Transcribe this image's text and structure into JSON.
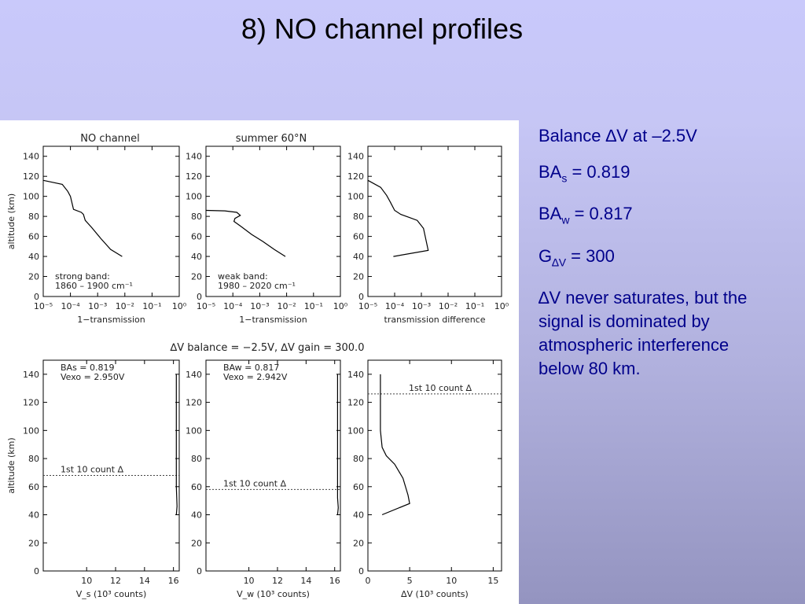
{
  "slide": {
    "title": "8) NO channel profiles",
    "notes": {
      "balance_prefix": "Balance ",
      "balance_delta": "∆",
      "balance_suffix": "V at –2.5V",
      "bas_prefix": "BA",
      "bas_sub": "s",
      "bas_suffix": " = 0.819",
      "baw_prefix": "BA",
      "baw_sub": "w",
      "baw_suffix": " = 0.817",
      "g_prefix": "G",
      "g_sub": "∆V",
      "g_suffix": " = 300",
      "sat_delta": "∆",
      "sat_lines": [
        "V never saturates, but the",
        "signal is dominated by",
        "atmospheric interference",
        "below 80 km."
      ]
    }
  },
  "colors": {
    "bg_top": "#c9c9fb",
    "bg_bottom": "#9494c0",
    "notes_text": "#00008b",
    "plot_line": "#000000"
  },
  "chart_data": [
    {
      "type": "line",
      "title": "NO channel",
      "xlabel": "1−transmission",
      "ylabel": "altitude (km)",
      "xscale": "log",
      "xlim": [
        1e-05,
        1
      ],
      "ylim": [
        0,
        150
      ],
      "xticks": [
        "10⁻⁵",
        "10⁻⁴",
        "10⁻³",
        "10⁻²",
        "10⁻¹",
        "10⁰"
      ],
      "yticks": [
        "0",
        "20",
        "40",
        "60",
        "80",
        "100",
        "120",
        "140"
      ],
      "annotation": [
        "strong band:",
        "1860 – 1900 cm⁻¹"
      ],
      "series": [
        {
          "x": [
            1e-05,
            5e-05,
            8e-05,
            0.0001,
            0.00013,
            0.00025,
            0.0003,
            0.00035,
            0.0006,
            0.0013,
            0.003,
            0.008
          ],
          "y": [
            116,
            112,
            105,
            100,
            87,
            84,
            82,
            76,
            69,
            58,
            47,
            40
          ]
        }
      ]
    },
    {
      "type": "line",
      "title": "summer 60°N",
      "xlabel": "1−transmission",
      "ylabel": "",
      "xscale": "log",
      "xlim": [
        1e-05,
        1
      ],
      "ylim": [
        0,
        150
      ],
      "xticks": [
        "10⁻⁵",
        "10⁻⁴",
        "10⁻³",
        "10⁻²",
        "10⁻¹",
        "10⁰"
      ],
      "yticks": [
        "0",
        "20",
        "40",
        "60",
        "80",
        "100",
        "120",
        "140"
      ],
      "annotation": [
        "weak band:",
        "1980 – 2020 cm⁻¹"
      ],
      "series": [
        {
          "x": [
            1e-05,
            5e-05,
            0.00014,
            0.00019,
            0.00012,
            0.00011,
            0.0002,
            0.0005,
            0.0013,
            0.0035,
            0.009
          ],
          "y": [
            86,
            85.5,
            84,
            81,
            78,
            75,
            70,
            62,
            55,
            47,
            40
          ]
        }
      ]
    },
    {
      "type": "line",
      "title": "",
      "xlabel": "transmission difference",
      "ylabel": "",
      "xscale": "log",
      "xlim": [
        1e-05,
        1
      ],
      "ylim": [
        0,
        150
      ],
      "xticks": [
        "10⁻⁵",
        "10⁻⁴",
        "10⁻³",
        "10⁻²",
        "10⁻¹",
        "10⁰"
      ],
      "yticks": [
        "0",
        "20",
        "40",
        "60",
        "80",
        "100",
        "120",
        "140"
      ],
      "series": [
        {
          "x": [
            1e-05,
            3e-05,
            5e-05,
            7e-05,
            0.0001,
            0.00017,
            0.00035,
            0.0007,
            0.0012,
            0.0018,
            9e-05
          ],
          "y": [
            116,
            109,
            101,
            94,
            86,
            82,
            79,
            76,
            68,
            46,
            40
          ]
        }
      ]
    },
    {
      "type": "line",
      "title": "",
      "xlabel": "V_s (10³ counts)",
      "ylabel": "altitude (km)",
      "xlim": [
        7,
        16.4
      ],
      "ylim": [
        0,
        150
      ],
      "xticks": [
        10,
        12,
        14,
        16
      ],
      "yticks": [
        0,
        20,
        40,
        60,
        80,
        100,
        120,
        140
      ],
      "labels": [
        "BAs = 0.819",
        "Vexo = 2.950V"
      ],
      "reference": {
        "label": "1st 10 count ∆",
        "y": 68
      },
      "series": [
        {
          "x": [
            16.2,
            16.2,
            16.25,
            16.2
          ],
          "y": [
            140,
            60,
            46,
            40
          ]
        }
      ]
    },
    {
      "type": "line",
      "title": "",
      "xlabel": "V_w (10³ counts)",
      "ylabel": "",
      "xlim": [
        7,
        16.4
      ],
      "ylim": [
        0,
        150
      ],
      "xticks": [
        10,
        12,
        14,
        16
      ],
      "yticks": [
        0,
        20,
        40,
        60,
        80,
        100,
        120,
        140
      ],
      "labels": [
        "BAw = 0.817",
        "Vexo = 2.942V"
      ],
      "reference": {
        "label": "1st 10 count ∆",
        "y": 58
      },
      "series": [
        {
          "x": [
            16.2,
            16.2,
            16.25,
            16.2
          ],
          "y": [
            140,
            52,
            45,
            40
          ]
        }
      ]
    },
    {
      "type": "line",
      "title": "",
      "xlabel": "∆V (10³ counts)",
      "ylabel": "",
      "xlim": [
        0,
        16
      ],
      "ylim": [
        0,
        150
      ],
      "xticks": [
        0,
        5,
        10,
        15
      ],
      "yticks": [
        0,
        20,
        40,
        60,
        80,
        100,
        120,
        140
      ],
      "reference": {
        "label": "1st 10 count ∆",
        "y": 126
      },
      "series": [
        {
          "x": [
            1.5,
            1.5,
            1.7,
            2.2,
            3.2,
            4.2,
            4.8,
            5.0,
            1.7
          ],
          "y": [
            140,
            100,
            88,
            82,
            76,
            66,
            54,
            48,
            40
          ]
        }
      ]
    }
  ],
  "figure": {
    "top_titles": [
      "NO channel",
      "summer 60°N"
    ],
    "bottom_title": "∆V balance = −2.5V, ∆V gain = 300.0"
  }
}
